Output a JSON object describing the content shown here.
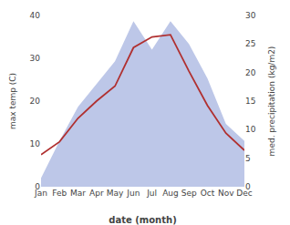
{
  "chart_data": {
    "type": "line",
    "xlabel": "date (month)",
    "ylabel": "max temp (C)",
    "y2label": "med. precipitation (kg/m2)",
    "categories": [
      "Jan",
      "Feb",
      "Mar",
      "Apr",
      "May",
      "Jun",
      "Jul",
      "Aug",
      "Sep",
      "Oct",
      "Nov",
      "Dec"
    ],
    "series": [
      {
        "type": "area",
        "color": "#bdc7e8",
        "axis": "y2",
        "values": [
          1.5,
          8.0,
          14.0,
          18.0,
          22.0,
          29.0,
          24.0,
          29.0,
          25.0,
          19.0,
          11.0,
          8.0
        ]
      },
      {
        "type": "line",
        "color": "#b03030",
        "values": [
          7.5,
          10.5,
          16.0,
          20.0,
          23.5,
          32.5,
          35.0,
          35.5,
          27.0,
          19.0,
          12.5,
          8.5
        ]
      }
    ],
    "ylim": [
      0,
      40
    ],
    "yticks": [
      0,
      10,
      20,
      30,
      40
    ],
    "y2lim": [
      0,
      30
    ],
    "y2ticks": [
      0,
      5,
      10,
      15,
      20,
      25,
      30
    ],
    "grid": false
  }
}
